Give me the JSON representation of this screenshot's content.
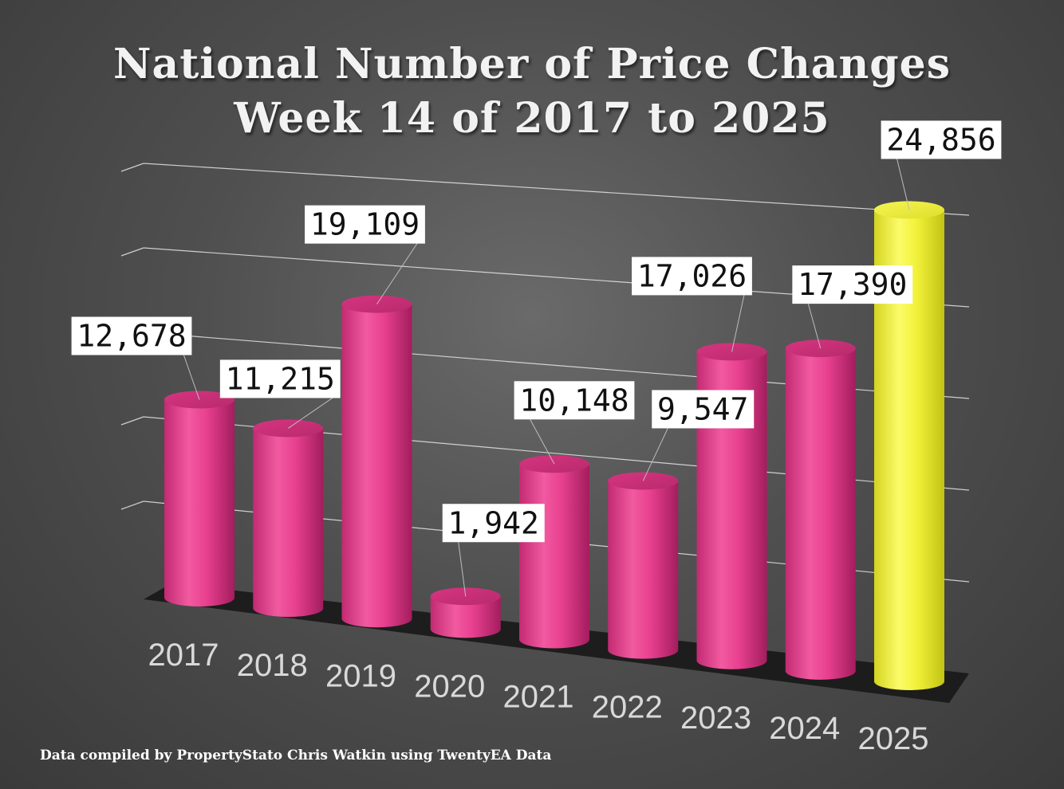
{
  "title_line1": "National Number of Price Changes",
  "title_line2": "Week 14 of 2017 to 2025",
  "footer": "Data compiled by PropertyStato Chris Watkin using TwentyEA Data",
  "colors": {
    "normal": "#e8408f",
    "highlight": "#f2f23a"
  },
  "chart_data": {
    "type": "bar",
    "style": "3d-cylinder",
    "title": "National Number of Price Changes Week 14 of 2017 to 2025",
    "categories": [
      "2017",
      "2018",
      "2019",
      "2020",
      "2021",
      "2022",
      "2023",
      "2024",
      "2025"
    ],
    "values": [
      12678,
      11215,
      19109,
      1942,
      10148,
      9547,
      17026,
      17390,
      24856
    ],
    "value_labels": [
      "12,678",
      "11,215",
      "19,109",
      "1,942",
      "10,148",
      "9,547",
      "17,026",
      "17,390",
      "24,856"
    ],
    "highlight_category": "2025",
    "ylim": [
      0,
      25000
    ],
    "grid": true,
    "legend": "none"
  }
}
